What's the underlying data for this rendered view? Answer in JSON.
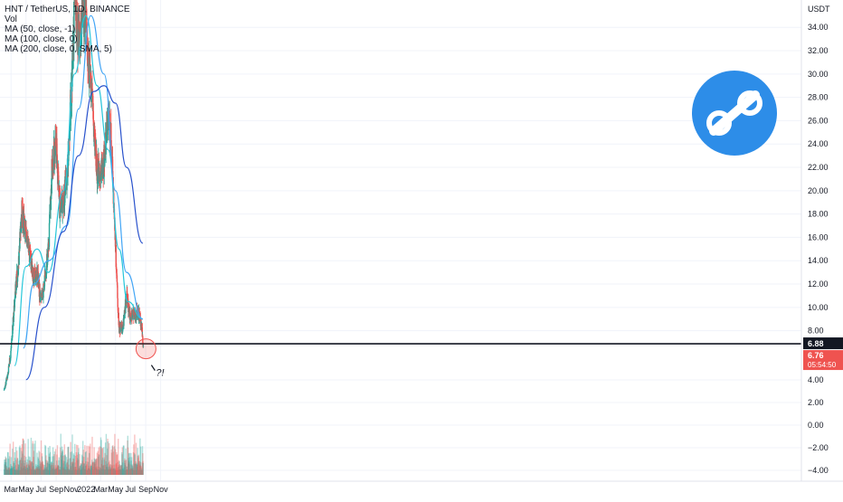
{
  "header": {
    "symbol_line": "HNT / TetherUS, 1D, BINANCE",
    "indicators": [
      "Vol",
      "MA (50, close, -1)",
      "MA (100, close, 0)",
      "MA (200, close, 0, SMA, 5)"
    ]
  },
  "colors": {
    "up": "#26a69a",
    "down": "#ef5350",
    "ma50": "#26c6da",
    "ma100": "#42a5f5",
    "ma200": "#2952cc",
    "support_line": "#131722",
    "price_label_bg": "#ef5350",
    "level_label_bg": "#131722",
    "logo_bg": "#2d8de8"
  },
  "chart_data": {
    "type": "candlestick",
    "title": "HNT / TetherUS, 1D, BINANCE",
    "y_axis": {
      "unit_label": "USDT",
      "tick_labels": [
        "34.00",
        "32.00",
        "30.00",
        "28.00",
        "26.00",
        "24.00",
        "22.00",
        "20.00",
        "18.00",
        "16.00",
        "14.00",
        "12.00",
        "10.00",
        "8.00"
      ],
      "range": [
        3.6,
        36.5
      ]
    },
    "volume_axis": {
      "tick_labels": [
        "4.00",
        "2.00",
        "0.00",
        "−2.00",
        "−4.00"
      ]
    },
    "x_axis": {
      "tick_labels": [
        "Mar",
        "May",
        "Jul",
        "Sep",
        "Nov",
        "2022",
        "Mar",
        "May",
        "Jul",
        "Sep",
        "Nov"
      ]
    },
    "grid": true,
    "price_path_monthly": {
      "x": [
        "2021-02-01",
        "2021-02-15",
        "2021-03-01",
        "2021-03-15",
        "2021-04-01",
        "2021-04-15",
        "2021-05-01",
        "2021-05-15",
        "2021-06-01",
        "2021-06-15",
        "2021-07-01",
        "2021-07-15",
        "2021-08-01",
        "2021-08-15",
        "2021-09-01",
        "2021-09-15",
        "2021-10-01",
        "2021-10-15",
        "2021-11-01",
        "2021-11-15",
        "2021-12-01",
        "2021-12-15",
        "2022-01-01",
        "2022-01-15",
        "2022-02-01",
        "2022-02-15",
        "2022-03-01",
        "2022-03-15",
        "2022-04-01",
        "2022-04-15",
        "2022-05-01",
        "2022-05-15",
        "2022-06-01",
        "2022-06-15",
        "2022-07-01",
        "2022-07-15",
        "2022-08-01",
        "2022-08-15",
        "2022-08-22"
      ],
      "close": [
        2.9,
        4.2,
        6.2,
        10.5,
        14.0,
        18.5,
        16.0,
        14.5,
        12.5,
        13.0,
        10.5,
        12.0,
        15.0,
        22.0,
        24.0,
        18.5,
        19.0,
        21.5,
        28.0,
        36.0,
        33.0,
        35.5,
        34.5,
        30.0,
        26.0,
        21.5,
        21.5,
        22.5,
        26.0,
        24.0,
        15.0,
        8.0,
        8.5,
        11.0,
        9.0,
        9.5,
        9.5,
        8.6,
        6.76
      ]
    },
    "moving_averages": [
      {
        "name": "MA (50, close, -1)",
        "values": {
          "x": [
            "2021-03-15",
            "2021-05-01",
            "2021-06-15",
            "2021-08-01",
            "2021-10-01",
            "2021-11-15",
            "2021-12-31",
            "2022-02-15",
            "2022-04-01",
            "2022-05-15",
            "2022-06-20",
            "2022-08-20"
          ],
          "y": [
            5.0,
            13.5,
            15.0,
            13.0,
            20.0,
            30.0,
            35.0,
            29.0,
            23.5,
            15.0,
            10.5,
            9.0
          ]
        }
      },
      {
        "name": "MA (100, close, 0)",
        "values": {
          "x": [
            "2021-04-20",
            "2021-06-01",
            "2021-08-01",
            "2021-10-15",
            "2021-12-01",
            "2022-01-20",
            "2022-03-15",
            "2022-05-01",
            "2022-06-15",
            "2022-08-20"
          ],
          "y": [
            6.5,
            12.0,
            14.0,
            17.0,
            27.0,
            35.0,
            30.0,
            20.0,
            13.0,
            9.0
          ]
        }
      },
      {
        "name": "MA (200, close, 0, SMA, 5)",
        "values": {
          "x": [
            "2021-05-01",
            "2021-07-15",
            "2021-10-01",
            "2021-12-01",
            "2022-02-01",
            "2022-03-15",
            "2022-05-01",
            "2022-06-15",
            "2022-08-20"
          ],
          "y": [
            3.8,
            10.0,
            16.5,
            23.0,
            28.5,
            29.0,
            27.5,
            22.0,
            15.5
          ]
        }
      }
    ],
    "horizontal_level": {
      "value": 6.88,
      "label": "6.88"
    },
    "last_price": {
      "value": 6.76,
      "label": "6.76",
      "countdown": "05:54:50"
    },
    "annotation_symbol": "?!"
  }
}
